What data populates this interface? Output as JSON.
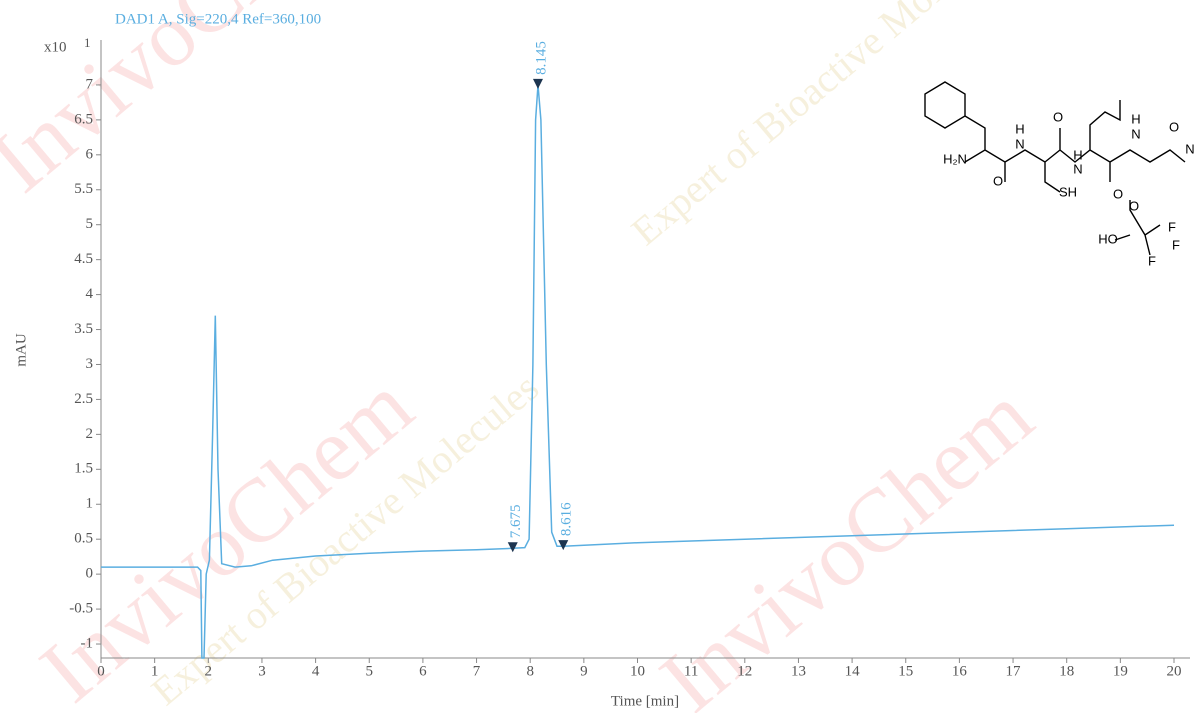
{
  "chart_data": {
    "type": "line",
    "signal_title": "DAD1 A, Sig=220,4 Ref=360,100",
    "xlabel": "Time [min]",
    "ylabel": "mAU",
    "y_multiplier": "x10",
    "y_exponent": "1",
    "series": [
      {
        "name": "DAD1 A",
        "color": "#5aaee0",
        "x": [
          0,
          1.0,
          1.8,
          1.86,
          1.88,
          1.92,
          1.96,
          2.02,
          2.08,
          2.13,
          2.18,
          2.25,
          2.5,
          2.8,
          3.2,
          4,
          5,
          6,
          7,
          7.675,
          7.9,
          7.98,
          8.05,
          8.1,
          8.145,
          8.2,
          8.3,
          8.4,
          8.5,
          8.616,
          10,
          12,
          14,
          16,
          18,
          20
        ],
        "values": [
          0.1,
          0.1,
          0.1,
          0.05,
          -1.2,
          -1.2,
          0.0,
          0.2,
          2.0,
          3.7,
          1.5,
          0.15,
          0.1,
          0.12,
          0.2,
          0.26,
          0.3,
          0.33,
          0.35,
          0.37,
          0.38,
          0.5,
          3.0,
          6.5,
          7.0,
          6.5,
          3.0,
          0.6,
          0.4,
          0.4,
          0.45,
          0.5,
          0.55,
          0.6,
          0.65,
          0.7
        ]
      }
    ],
    "peaks": [
      {
        "x": 7.675,
        "y": 0.37
      },
      {
        "x": 8.145,
        "y": 7.0
      },
      {
        "x": 8.616,
        "y": 0.4
      }
    ],
    "xlim": [
      0,
      20
    ],
    "xticks": [
      0,
      1,
      2,
      3,
      4,
      5,
      6,
      7,
      8,
      9,
      10,
      11,
      12,
      13,
      14,
      15,
      16,
      17,
      18,
      19,
      20
    ],
    "ylim": [
      -1.2,
      7.6
    ],
    "yticks": [
      -1,
      -0.5,
      0,
      0.5,
      1,
      1.5,
      2,
      2.5,
      3,
      3.5,
      4,
      4.5,
      5,
      5.5,
      6,
      6.5,
      7
    ]
  },
  "structure": {
    "labels": [
      "H₂N",
      "O",
      "H",
      "N",
      "SH",
      "O",
      "H",
      "N",
      "O",
      "H",
      "N",
      "O",
      "N",
      "HO",
      "O",
      "F",
      "F",
      "F"
    ]
  },
  "watermark": [
    "InvivoChem",
    "Expert of Bioactive Molecules"
  ]
}
